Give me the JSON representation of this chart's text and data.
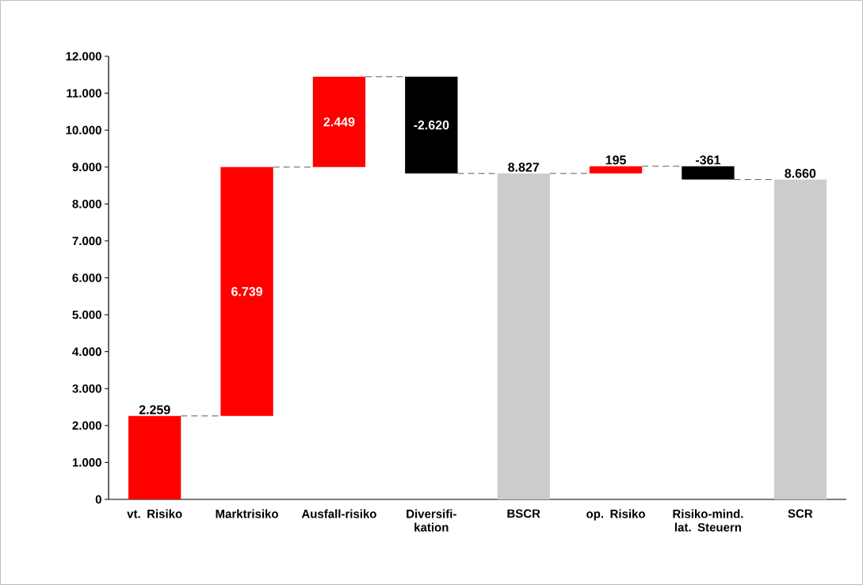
{
  "chart_data": {
    "type": "bar",
    "categories": [
      "vt. Risiko",
      "Marktrisiko",
      "Ausfall-risiko",
      "Diversifi-kation",
      "BSCR",
      "op. Risiko",
      "Risiko-mind. lat. Steuern",
      "SCR"
    ],
    "values": [
      2259,
      6739,
      2449,
      -2620,
      8827,
      195,
      -361,
      8660
    ],
    "base": [
      0,
      2259,
      8998,
      11447,
      0,
      8827,
      9022,
      0
    ],
    "colors": [
      "#ff0000",
      "#ff0000",
      "#ff0000",
      "#000000",
      "#cccccc",
      "#ff0000",
      "#000000",
      "#cccccc"
    ],
    "value_labels": [
      "2.259",
      "6.739",
      "2.449",
      "-2.620",
      "8.827",
      "195",
      "-361",
      "8.660"
    ],
    "ylim": [
      0,
      12000
    ],
    "yticks": [
      {
        "value": 0,
        "label": "0"
      },
      {
        "value": 1000,
        "label": "1.000"
      },
      {
        "value": 2000,
        "label": "2.000"
      },
      {
        "value": 3000,
        "label": "3.000"
      },
      {
        "value": 4000,
        "label": "4.000"
      },
      {
        "value": 5000,
        "label": "5.000"
      },
      {
        "value": 6000,
        "label": "6.000"
      },
      {
        "value": 7000,
        "label": "7.000"
      },
      {
        "value": 8000,
        "label": "8.000"
      },
      {
        "value": 9000,
        "label": "9.000"
      },
      {
        "value": 10000,
        "label": "10.000"
      },
      {
        "value": 11000,
        "label": "11.000"
      },
      {
        "value": 12000,
        "label": "12.000"
      }
    ],
    "grid": false
  }
}
